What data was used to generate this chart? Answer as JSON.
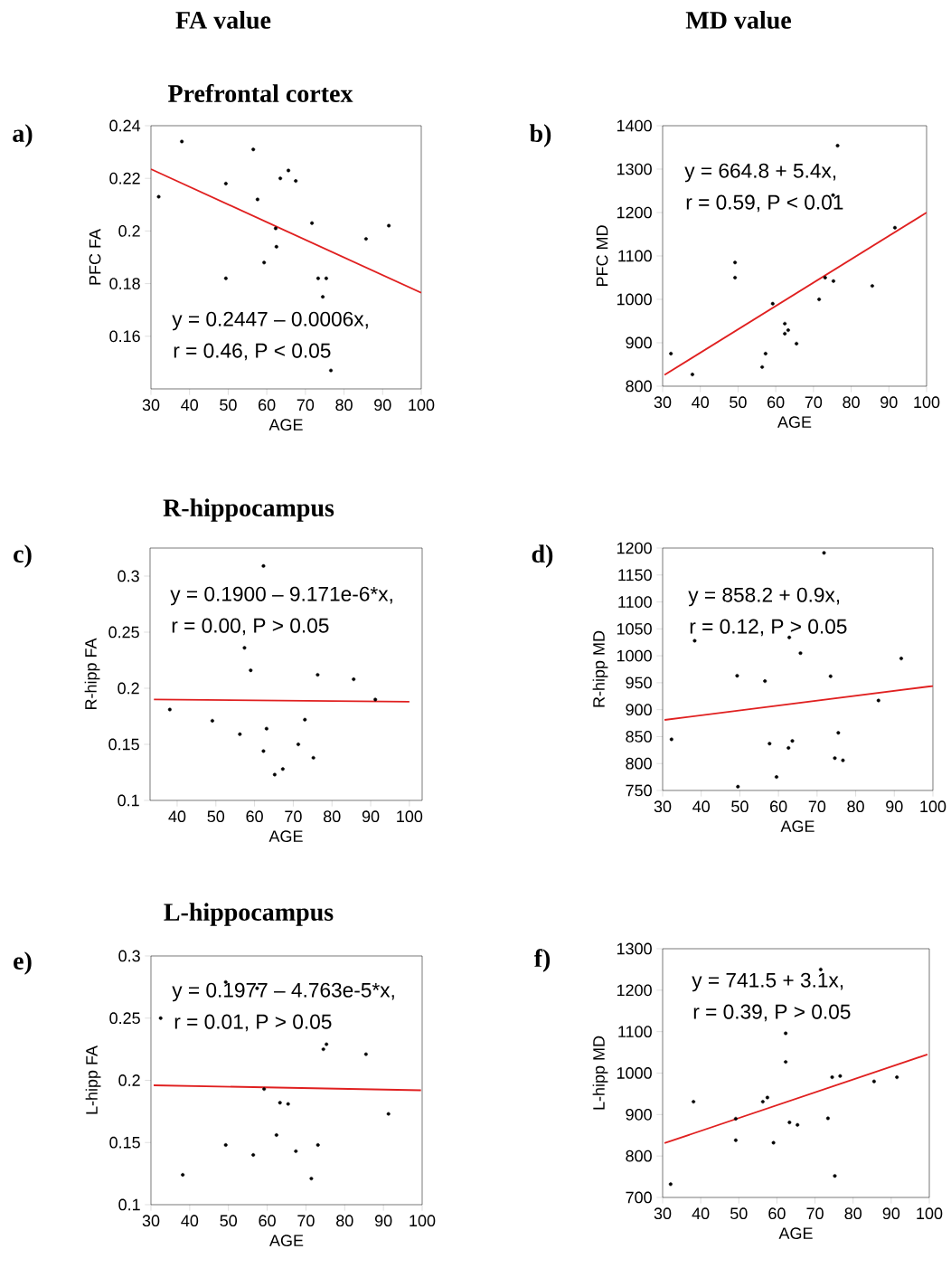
{
  "chart_data": [
    {
      "type": "scatter",
      "title": "Prefrontal cortex",
      "xlabel": "AGE",
      "ylabel": "PFC FA",
      "annotations": [
        "a)",
        "y = 0.2447 – 0.0006x,",
        "r = 0.46, P < 0.05",
        "FA value"
      ],
      "xlim": [
        30,
        100
      ],
      "ylim": [
        0.14,
        0.24
      ],
      "xticks": [
        30,
        40,
        50,
        60,
        70,
        80,
        90,
        100
      ],
      "yticks": [
        0.16,
        0.18,
        0.2,
        0.22,
        0.24
      ],
      "series": [
        {
          "marker": "circle",
          "color": "#000000",
          "x": [
            32,
            38,
            49.4,
            49.4,
            56.5,
            57.6,
            59.3,
            62.3,
            62.5,
            63.5,
            65.6,
            67.5,
            71.7,
            73.3,
            75.4,
            74.5,
            76.6,
            85.7,
            91.6
          ],
          "values": [
            0.213,
            0.234,
            0.218,
            0.182,
            0.231,
            0.212,
            0.188,
            0.201,
            0.194,
            0.22,
            0.223,
            0.219,
            0.203,
            0.182,
            0.182,
            0.175,
            0.147,
            0.197,
            0.202
          ]
        },
        {
          "type": "line",
          "color": "#e02020",
          "x": [
            30,
            100
          ],
          "values": [
            0.2235,
            0.1765
          ]
        }
      ]
    },
    {
      "type": "scatter",
      "xlabel": "AGE",
      "ylabel": "PFC MD",
      "annotations": [
        "b)",
        "y = 664.8 + 5.4x,",
        "r = 0.59, P < 0.01",
        "MD value"
      ],
      "xlim": [
        30,
        100
      ],
      "ylim": [
        800,
        1400
      ],
      "xticks": [
        30,
        40,
        50,
        60,
        70,
        80,
        90,
        100
      ],
      "yticks": [
        800,
        900,
        1000,
        1100,
        1200,
        1300,
        1400
      ],
      "series": [
        {
          "marker": "circle",
          "color": "#000000",
          "x": [
            32.2,
            37.9,
            49.2,
            49.2,
            56.4,
            57.3,
            59.2,
            62.4,
            62.4,
            63.3,
            65.5,
            71.5,
            73.1,
            75.3,
            76.4,
            75.2,
            85.6,
            91.6
          ],
          "values": [
            875,
            827,
            1085,
            1050,
            844,
            875,
            990,
            944,
            921,
            929,
            898,
            1000,
            1050,
            1042,
            1354,
            1240,
            1031,
            1165
          ]
        },
        {
          "type": "line",
          "color": "#e02020",
          "x": [
            30.5,
            100
          ],
          "values": [
            826,
            1200
          ]
        }
      ]
    },
    {
      "type": "scatter",
      "title": "R-hippocampus",
      "xlabel": "AGE",
      "ylabel": "R-hipp FA",
      "annotations": [
        "c)",
        "y = 0.1900 – 9.171e-6*x,",
        "r = 0.00, P > 0.05"
      ],
      "xlim": [
        33,
        103.3
      ],
      "ylim": [
        0.1,
        0.325
      ],
      "xticks": [
        40,
        50,
        60,
        70,
        80,
        90,
        100
      ],
      "yticks": [
        0.1,
        0.15,
        0.2,
        0.25,
        0.3
      ],
      "series": [
        {
          "marker": "circle",
          "color": "#000000",
          "x": [
            38.1,
            49.1,
            56.2,
            57.4,
            59.0,
            62.3,
            62.3,
            63.1,
            65.2,
            67.3,
            71.3,
            73.0,
            75.2,
            76.3,
            85.6,
            91.2
          ],
          "values": [
            0.181,
            0.171,
            0.159,
            0.236,
            0.216,
            0.309,
            0.144,
            0.164,
            0.123,
            0.128,
            0.15,
            0.172,
            0.138,
            0.212,
            0.208,
            0.19
          ]
        },
        {
          "type": "line",
          "color": "#e02020",
          "x": [
            34,
            100
          ],
          "values": [
            0.19,
            0.188
          ]
        }
      ]
    },
    {
      "type": "scatter",
      "xlabel": "AGE",
      "ylabel": "R-hipp MD",
      "annotations": [
        "d)",
        "y = 858.2 + 0.9x,",
        "r = 0.12, P > 0.05"
      ],
      "xlim": [
        30,
        100
      ],
      "ylim": [
        750,
        1200
      ],
      "xticks": [
        30,
        40,
        50,
        60,
        70,
        80,
        90,
        100
      ],
      "yticks": [
        750,
        800,
        850,
        900,
        950,
        1000,
        1050,
        1100,
        1150,
        1200
      ],
      "series": [
        {
          "marker": "circle",
          "color": "#000000",
          "x": [
            32.3,
            38.3,
            49.3,
            49.5,
            56.5,
            57.7,
            59.5,
            62.6,
            62.8,
            63.6,
            65.7,
            71.8,
            73.5,
            74.6,
            75.5,
            76.7,
            85.9,
            91.8
          ],
          "values": [
            845,
            1028,
            963,
            757,
            953,
            837,
            775,
            829,
            1034,
            842,
            1005,
            1191,
            962,
            810,
            857,
            806,
            917,
            995
          ]
        },
        {
          "type": "line",
          "color": "#e02020",
          "x": [
            30.5,
            100
          ],
          "values": [
            881,
            944
          ]
        }
      ]
    },
    {
      "type": "scatter",
      "title": "L-hippocampus",
      "xlabel": "AGE",
      "ylabel": "L-hipp FA",
      "annotations": [
        "e)",
        "y = 0.1977 – 4.763e-5*x,",
        "r = 0.01, P > 0.05"
      ],
      "xlim": [
        30,
        100
      ],
      "ylim": [
        0.1,
        0.3
      ],
      "xticks": [
        30,
        40,
        50,
        60,
        70,
        80,
        90,
        100
      ],
      "yticks": [
        0.1,
        0.15,
        0.2,
        0.25,
        0.3
      ],
      "series": [
        {
          "marker": "circle",
          "color": "#000000",
          "x": [
            32.5,
            38.2,
            49.3,
            57.4,
            49.3,
            56.4,
            59.2,
            62.4,
            63.3,
            65.4,
            67.4,
            71.4,
            73.1,
            74.5,
            75.3,
            85.5,
            91.3
          ],
          "values": [
            0.25,
            0.124,
            0.279,
            0.274,
            0.148,
            0.14,
            0.193,
            0.156,
            0.182,
            0.181,
            0.143,
            0.121,
            0.148,
            0.225,
            0.229,
            0.221,
            0.173
          ]
        },
        {
          "type": "line",
          "color": "#e02020",
          "x": [
            30.7,
            99.7
          ],
          "values": [
            0.196,
            0.192
          ]
        }
      ]
    },
    {
      "type": "scatter",
      "xlabel": "AGE",
      "ylabel": "L-hipp MD",
      "annotations": [
        "f)",
        "y = 741.5 + 3.1x,",
        "r = 0.39, P > 0.05"
      ],
      "xlim": [
        30,
        100
      ],
      "ylim": [
        700,
        1300
      ],
      "xticks": [
        30,
        40,
        50,
        60,
        70,
        80,
        90,
        100
      ],
      "yticks": [
        700,
        800,
        900,
        1000,
        1100,
        1200,
        1300
      ],
      "series": [
        {
          "marker": "circle",
          "color": "#000000",
          "x": [
            32.1,
            38.1,
            49.2,
            49.2,
            56.3,
            57.5,
            59.1,
            62.3,
            62.3,
            63.3,
            65.4,
            71.5,
            73.4,
            74.5,
            75.2,
            76.6,
            85.5,
            91.5
          ],
          "values": [
            732,
            931,
            890,
            838,
            931,
            941,
            832,
            1096,
            1027,
            881,
            875,
            1250,
            891,
            990,
            752,
            993,
            980,
            990
          ]
        },
        {
          "type": "line",
          "color": "#e02020",
          "x": [
            30.5,
            99.5
          ],
          "values": [
            831,
            1045
          ]
        }
      ]
    }
  ]
}
